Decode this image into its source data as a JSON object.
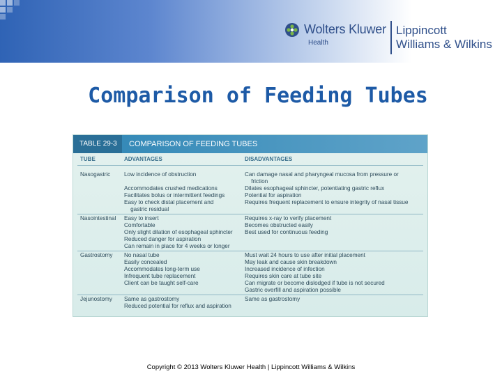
{
  "header": {
    "logo_company": "Wolters Kluwer",
    "logo_division": "Health",
    "publisher_line1": "Lippincott",
    "publisher_line2": "Williams & Wilkins"
  },
  "slide_title": "Comparison of Feeding Tubes",
  "table": {
    "number": "TABLE 29-3",
    "title": "COMPARISON OF FEEDING TUBES",
    "columns": [
      "TUBE",
      "ADVANTAGES",
      "DISADVANTAGES"
    ],
    "rows": [
      {
        "tube": "Nasogastric",
        "advantages": [
          "Low incidence of obstruction",
          "",
          "Accommodates crushed medications",
          "Facilitates bolus or intermittent feedings",
          "Easy to check distal placement and",
          "    gastric residual"
        ],
        "disadvantages": [
          "Can damage nasal and pharyngeal mucosa from pressure or",
          "    friction",
          "Dilates esophageal sphincter, potentiating gastric reflux",
          "Potential for aspiration",
          "Requires frequent replacement to ensure integrity of nasal tissue"
        ]
      },
      {
        "tube": "Nasointestinal",
        "advantages": [
          "Easy to insert",
          "Comfortable",
          "Only slight dilation of esophageal sphincter",
          "Reduced danger for aspiration",
          "Can remain in place for 4 weeks or longer"
        ],
        "disadvantages": [
          "Requires x-ray to verify placement",
          "Becomes obstructed easily",
          "Best used for continuous feeding"
        ]
      },
      {
        "tube": "Gastrostomy",
        "advantages": [
          "No nasal tube",
          "Easily concealed",
          "Accommodates long-term use",
          "Infrequent tube replacement",
          "Client can be taught self-care"
        ],
        "disadvantages": [
          "Must wait 24 hours to use after initial placement",
          "May leak and cause skin breakdown",
          "Increased incidence of infection",
          "Requires skin care at tube site",
          "Can migrate or become dislodged if tube is not secured",
          "Gastric overfill and aspiration possible"
        ]
      },
      {
        "tube": "Jejunostomy",
        "advantages": [
          "Same as gastrostomy",
          "Reduced potential for reflux and aspiration"
        ],
        "disadvantages": [
          "Same as gastrostomy"
        ]
      }
    ]
  },
  "footer": "Copyright © 2013 Wolters Kluwer Health | Lippincott Williams & Wilkins",
  "colors": {
    "title": "#1d5aa6",
    "header_band_start": "#2f63b5",
    "table_background": "#d8ecea",
    "table_header": "#2f86b5"
  }
}
